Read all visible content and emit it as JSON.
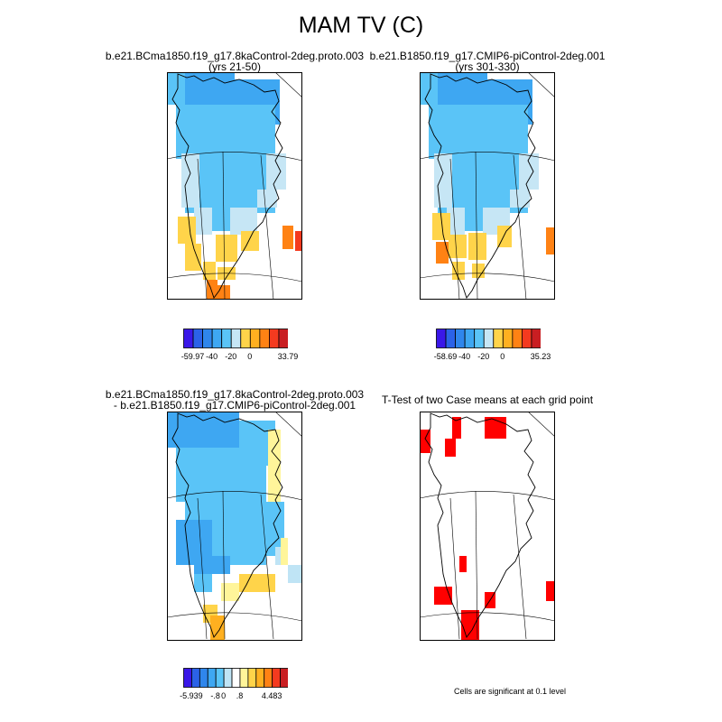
{
  "title": "MAM TV (C)",
  "panels": [
    {
      "title_line1": "b.e21.BCma1850.f19_g17.8kaControl-2deg.proto.003",
      "title_line2": "(yrs 21-50)",
      "colorbar": {
        "colors": [
          "#3a17e8",
          "#2b62e8",
          "#2f86ec",
          "#3ea7f2",
          "#5ac4f7",
          "#c6e6f5",
          "#ffd44a",
          "#ffb020",
          "#ff8214",
          "#f43a1f",
          "#c91e22"
        ],
        "labels": [
          {
            "slot": 0,
            "text": "-59.97"
          },
          {
            "slot": 2,
            "text": "-40"
          },
          {
            "slot": 4,
            "text": "-20"
          },
          {
            "slot": 6,
            "text": "0"
          },
          {
            "slot": 10,
            "text": "33.79"
          }
        ]
      }
    },
    {
      "title_line1": "b.e21.B1850.f19_g17.CMIP6-piControl-2deg.001",
      "title_line2": "(yrs 301-330)",
      "colorbar": {
        "colors": [
          "#3a17e8",
          "#2b62e8",
          "#2f86ec",
          "#3ea7f2",
          "#5ac4f7",
          "#c6e6f5",
          "#ffd44a",
          "#ffb020",
          "#ff8214",
          "#f43a1f",
          "#c91e22"
        ],
        "labels": [
          {
            "slot": 0,
            "text": "-58.69"
          },
          {
            "slot": 2,
            "text": "-40"
          },
          {
            "slot": 4,
            "text": "-20"
          },
          {
            "slot": 6,
            "text": "0"
          },
          {
            "slot": 10,
            "text": "35.23"
          }
        ]
      }
    },
    {
      "title_line1": "b.e21.BCma1850.f19_g17.8kaControl-2deg.proto.003",
      "title_line2": "- b.e21.B1850.f19_g17.CMIP6-piControl-2deg.001",
      "colorbar": {
        "colors": [
          "#3a17e8",
          "#2b62e8",
          "#2f86ec",
          "#3ea7f2",
          "#5ac4f7",
          "#bfe4f5",
          "#ffffff",
          "#fff59a",
          "#ffd44a",
          "#ffb020",
          "#ff8214",
          "#f43a1f",
          "#c91e22"
        ],
        "labels": [
          {
            "slot": 0,
            "text": "-5.939"
          },
          {
            "slot": 3,
            "text": "-.8"
          },
          {
            "slot": 4,
            "text": "0"
          },
          {
            "slot": 6,
            "text": ".8"
          },
          {
            "slot": 10,
            "text": "4.483"
          }
        ]
      }
    },
    {
      "title_line1": "T-Test of two Case means at each grid point",
      "note": "Cells are significant at 0.1 level"
    }
  ],
  "colors": {
    "significant": "#ff0000",
    "coastline": "#000000"
  }
}
